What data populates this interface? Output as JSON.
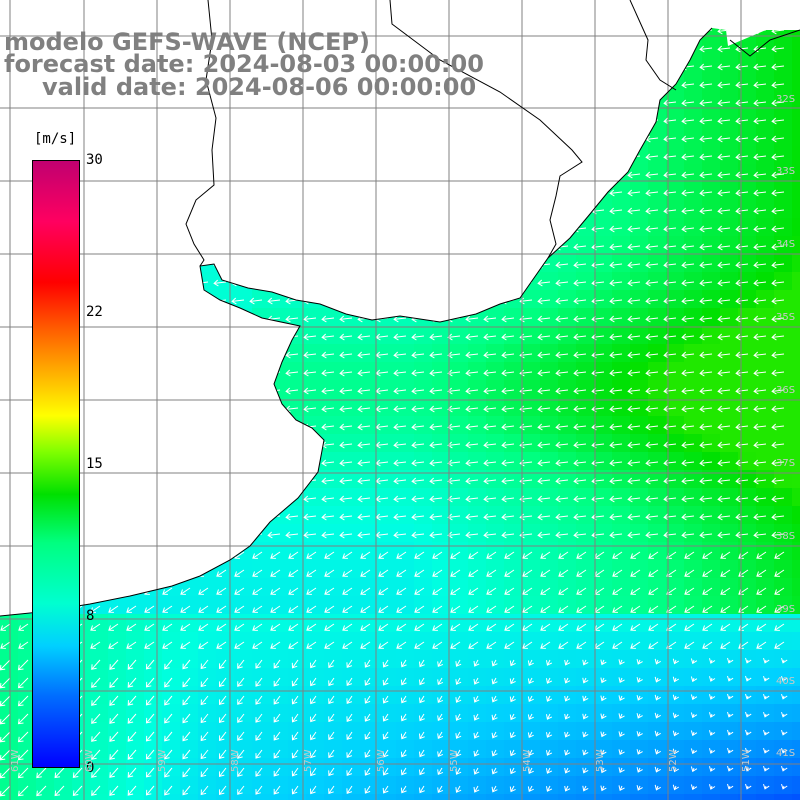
{
  "title": {
    "model": "modelo GEFS-WAVE (NCEP)",
    "forecast": "forecast date: 2024-08-03 00:00:00",
    "valid": "valid date: 2024-08-06 00:00:00"
  },
  "colorbar": {
    "unit": "[m/s]",
    "ticks": [
      "30",
      "22",
      "15",
      "8",
      "0"
    ]
  },
  "lat_labels": [
    "32S",
    "33S",
    "34S",
    "35S",
    "36S",
    "37S",
    "38S",
    "39S",
    "40S",
    "41S"
  ],
  "lon_labels": [
    "61W",
    "60W",
    "59W",
    "58W",
    "57W",
    "56W",
    "55W",
    "54W",
    "53W",
    "52W",
    "51W"
  ],
  "colors": {
    "land": "#ffffff",
    "coast": "#000000",
    "grid": "#808080",
    "arrows": "#ffffff",
    "text": "#808080"
  },
  "map_data": {
    "variable": "wind speed",
    "units": "m/s",
    "scale_range": [
      0,
      30
    ],
    "forecast_date": "2024-08-03 00:00:00",
    "valid_date": "2024-08-06 00:00:00"
  }
}
